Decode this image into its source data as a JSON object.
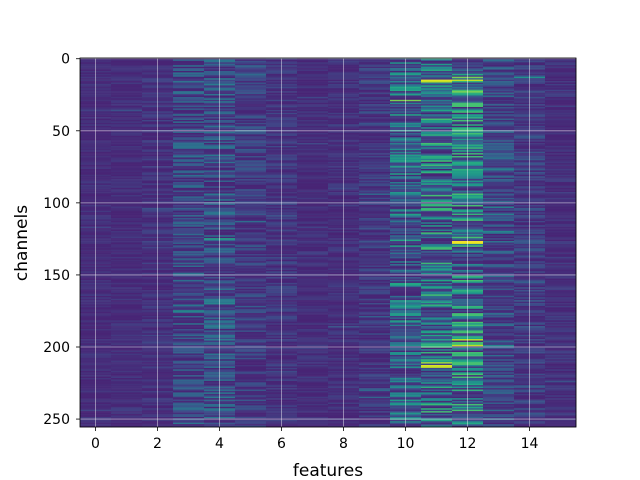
{
  "chart_data": {
    "type": "heatmap",
    "title": "",
    "xlabel": "features",
    "ylabel": "channels",
    "x_range": [
      -0.5,
      15.5
    ],
    "y_range": [
      255.5,
      -0.5
    ],
    "n_features": 16,
    "n_channels": 256,
    "x_ticks": [
      0,
      2,
      4,
      6,
      8,
      10,
      12,
      14
    ],
    "y_ticks": [
      0,
      50,
      100,
      150,
      200,
      250
    ],
    "y_axis_inverted": true,
    "grid": true,
    "colormap": "viridis",
    "colorbar": false,
    "feature_intensity": [
      0.14,
      0.14,
      0.16,
      0.26,
      0.28,
      0.2,
      0.17,
      0.14,
      0.15,
      0.18,
      0.38,
      0.44,
      0.5,
      0.26,
      0.2,
      0.15
    ],
    "bright_cells": [
      {
        "feature": 10,
        "channel": 29,
        "value": 0.8
      },
      {
        "feature": 10,
        "channel": 65,
        "value": 0.45
      },
      {
        "feature": 10,
        "channel": 94,
        "value": 0.45
      },
      {
        "feature": 10,
        "channel": 113,
        "value": 0.4
      },
      {
        "feature": 11,
        "channel": 15,
        "value": 0.95
      },
      {
        "feature": 11,
        "channel": 16,
        "value": 0.9
      },
      {
        "feature": 11,
        "channel": 147,
        "value": 0.45
      },
      {
        "feature": 11,
        "channel": 172,
        "value": 0.45
      },
      {
        "feature": 11,
        "channel": 180,
        "value": 0.5
      },
      {
        "feature": 11,
        "channel": 211,
        "value": 0.85
      },
      {
        "feature": 11,
        "channel": 213,
        "value": 0.95
      },
      {
        "feature": 11,
        "channel": 214,
        "value": 0.9
      },
      {
        "feature": 11,
        "channel": 232,
        "value": 0.5
      },
      {
        "feature": 12,
        "channel": 11,
        "value": 0.6
      },
      {
        "feature": 12,
        "channel": 13,
        "value": 0.8
      },
      {
        "feature": 12,
        "channel": 15,
        "value": 0.9
      },
      {
        "feature": 12,
        "channel": 23,
        "value": 0.8
      },
      {
        "feature": 12,
        "channel": 64,
        "value": 0.6
      },
      {
        "feature": 12,
        "channel": 105,
        "value": 0.55
      },
      {
        "feature": 12,
        "channel": 119,
        "value": 0.5
      },
      {
        "feature": 12,
        "channel": 127,
        "value": 1.0
      },
      {
        "feature": 12,
        "channel": 128,
        "value": 0.95
      },
      {
        "feature": 12,
        "channel": 143,
        "value": 0.5
      },
      {
        "feature": 12,
        "channel": 185,
        "value": 0.7
      },
      {
        "feature": 12,
        "channel": 195,
        "value": 0.9
      },
      {
        "feature": 12,
        "channel": 199,
        "value": 0.9
      },
      {
        "feature": 12,
        "channel": 210,
        "value": 0.6
      },
      {
        "feature": 12,
        "channel": 253,
        "value": 0.6
      },
      {
        "feature": 13,
        "channel": 120,
        "value": 0.45
      },
      {
        "feature": 13,
        "channel": 199,
        "value": 0.45
      },
      {
        "feature": 14,
        "channel": 13,
        "value": 0.5
      },
      {
        "feature": 4,
        "channel": 67,
        "value": 0.4
      },
      {
        "feature": 3,
        "channel": 171,
        "value": 0.4
      }
    ]
  }
}
